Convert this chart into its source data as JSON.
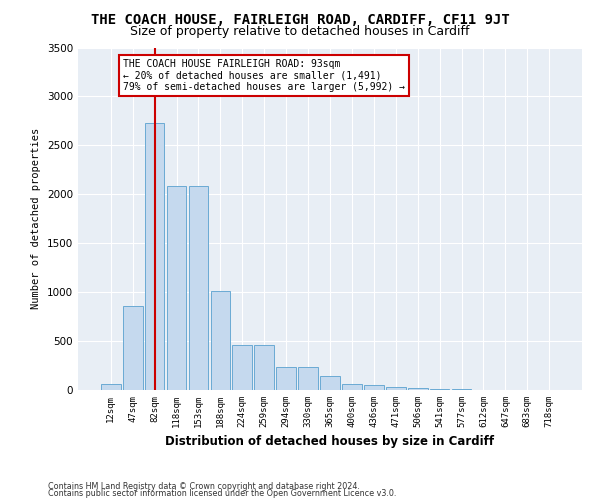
{
  "title": "THE COACH HOUSE, FAIRLEIGH ROAD, CARDIFF, CF11 9JT",
  "subtitle": "Size of property relative to detached houses in Cardiff",
  "xlabel": "Distribution of detached houses by size in Cardiff",
  "ylabel": "Number of detached properties",
  "categories": [
    "12sqm",
    "47sqm",
    "82sqm",
    "118sqm",
    "153sqm",
    "188sqm",
    "224sqm",
    "259sqm",
    "294sqm",
    "330sqm",
    "365sqm",
    "400sqm",
    "436sqm",
    "471sqm",
    "506sqm",
    "541sqm",
    "577sqm",
    "612sqm",
    "647sqm",
    "683sqm",
    "718sqm"
  ],
  "values": [
    60,
    860,
    2730,
    2080,
    2080,
    1010,
    460,
    460,
    230,
    230,
    140,
    60,
    50,
    30,
    22,
    10,
    7,
    4,
    3,
    2,
    1
  ],
  "bar_color": "#c5d9ee",
  "bar_edge_color": "#6aaad4",
  "vline_x_index": 2,
  "vline_color": "#cc0000",
  "annotation_line1": "THE COACH HOUSE FAIRLEIGH ROAD: 93sqm",
  "annotation_line2": "← 20% of detached houses are smaller (1,491)",
  "annotation_line3": "79% of semi-detached houses are larger (5,992) →",
  "annotation_box_facecolor": "#ffffff",
  "annotation_box_edgecolor": "#cc0000",
  "ylim": [
    0,
    3500
  ],
  "yticks": [
    0,
    500,
    1000,
    1500,
    2000,
    2500,
    3000,
    3500
  ],
  "background_color": "#e8eef5",
  "grid_color": "#ffffff",
  "footer1": "Contains HM Land Registry data © Crown copyright and database right 2024.",
  "footer2": "Contains public sector information licensed under the Open Government Licence v3.0.",
  "title_fontsize": 10,
  "subtitle_fontsize": 9,
  "xlabel_fontsize": 8.5,
  "ylabel_fontsize": 7.5,
  "tick_fontsize": 6.5,
  "ytick_fontsize": 7.5,
  "footer_fontsize": 5.8
}
